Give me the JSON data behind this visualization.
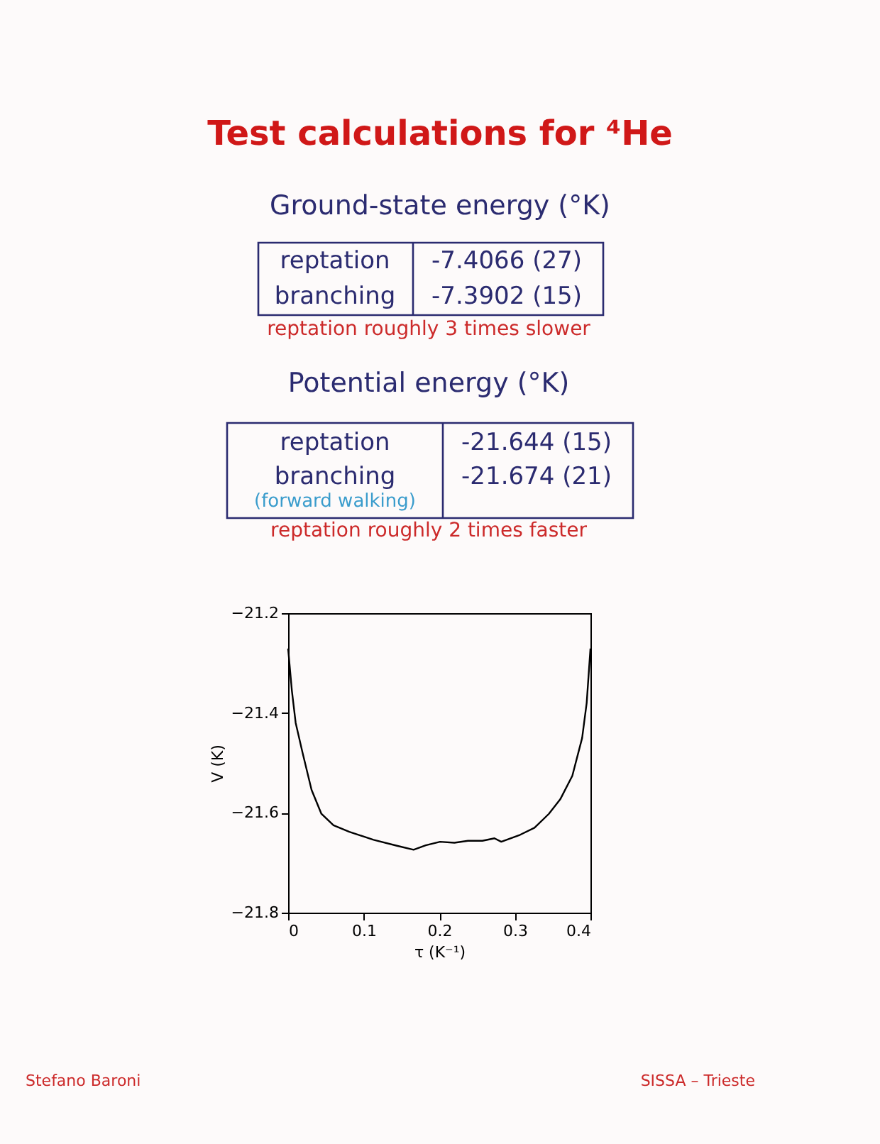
{
  "chart_data": {
    "type": "line",
    "title": "Test calculations for ⁴He",
    "xlabel": "τ  (K⁻¹)",
    "ylabel": "V  (K)",
    "x": [
      0,
      0.005,
      0.01,
      0.019,
      0.031,
      0.044,
      0.06,
      0.081,
      0.113,
      0.144,
      0.166,
      0.182,
      0.201,
      0.22,
      0.238,
      0.257,
      0.273,
      0.282,
      0.307,
      0.326,
      0.345,
      0.36,
      0.376,
      0.389,
      0.395,
      0.4
    ],
    "series": [
      {
        "color": "#000000",
        "values": [
          -21.271,
          -21.356,
          -21.42,
          -21.479,
          -21.554,
          -21.602,
          -21.625,
          -21.638,
          -21.654,
          -21.666,
          -21.674,
          -21.665,
          -21.658,
          -21.66,
          -21.656,
          -21.656,
          -21.651,
          -21.658,
          -21.644,
          -21.63,
          -21.602,
          -21.573,
          -21.526,
          -21.45,
          -21.38,
          -21.271
        ]
      }
    ],
    "xlim": [
      0,
      0.4
    ],
    "xticks": [
      0,
      0.1,
      0.2,
      0.3,
      0.4
    ],
    "ylim": [
      -21.8,
      -21.2
    ],
    "yticks": [
      -21.8,
      -21.6,
      -21.4,
      -21.2
    ],
    "grid": false,
    "legend": false,
    "marker": "none",
    "line_style": "solid",
    "annotations": [
      "Ground-state energy (°K)",
      "reptation",
      "-7.4066 (27)",
      "branching",
      "-7.3902 (15)",
      "reptation roughly 3 times slower",
      "Potential energy (°K)",
      "reptation",
      "-21.644 (15)",
      "branching",
      "(forward walking)",
      "-21.674 (21)",
      "reptation roughly 2 times faster",
      "Stefano Baroni",
      "SISSA – Trieste"
    ]
  }
}
